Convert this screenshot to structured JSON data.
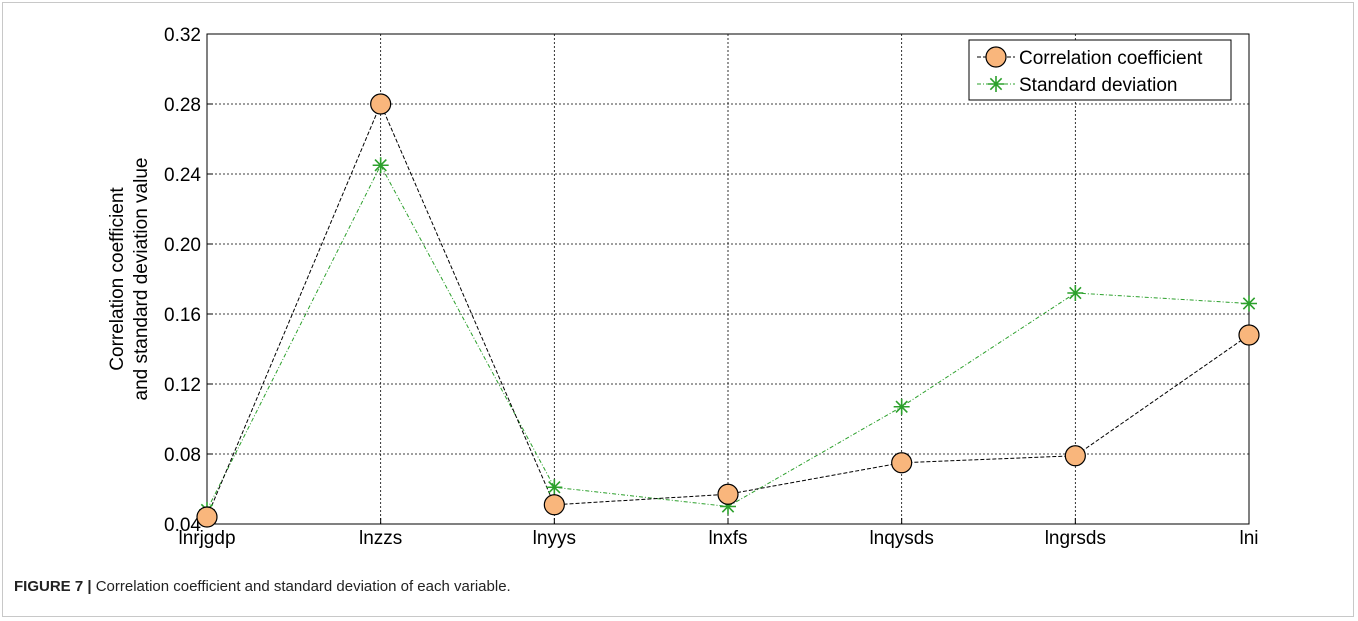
{
  "chart_data": {
    "type": "line",
    "categories": [
      "lnrjgdp",
      "lnzzs",
      "lnyys",
      "lnxfs",
      "lnqysds",
      "lngrsds",
      "lni"
    ],
    "series": [
      {
        "name": "Correlation coefficient",
        "values": [
          0.044,
          0.28,
          0.051,
          0.057,
          0.075,
          0.079,
          0.148
        ],
        "color": "#000000",
        "marker": "circle",
        "marker_fill": "#f9b67c"
      },
      {
        "name": "Standard deviation",
        "values": [
          0.048,
          0.245,
          0.061,
          0.05,
          0.107,
          0.172,
          0.166
        ],
        "color": "#2ca02c",
        "marker": "star"
      }
    ],
    "ylabel": "Correlation coefficient\nand standard deviation value",
    "ylabel_lines": [
      "Correlation coefficient",
      "and standard deviation value"
    ],
    "ylim": [
      0.04,
      0.32
    ],
    "yticks": [
      "0.04",
      "0.08",
      "0.12",
      "0.16",
      "0.20",
      "0.24",
      "0.28",
      "0.32"
    ],
    "grid": true,
    "legend_position": "top-right"
  },
  "caption": {
    "label": "FIGURE 7 |",
    "text": " Correlation coefficient and standard deviation of each variable."
  }
}
